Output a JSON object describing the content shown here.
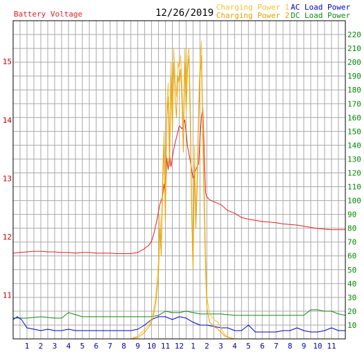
{
  "chart_data": {
    "type": "line",
    "date": "12/26/2019",
    "colors": {
      "voltage": "#e02020",
      "charge1": "#f5c030",
      "charge2": "#e8a000",
      "ac": "#0000cc",
      "dc": "#118811",
      "grid": "#a9a9a9",
      "tick_left": "#cc0000",
      "tick_right": "#008800",
      "tick_x": "#0000aa"
    },
    "legend": {
      "voltage": "Battery Voltage",
      "charge1": "Charging Power 1",
      "charge2": "Charging Power 2",
      "ac": "AC Load Power",
      "dc": "DC Load Power"
    },
    "x_ticks": [
      "1",
      "2",
      "3",
      "4",
      "5",
      "6",
      "7",
      "8",
      "9",
      "10",
      "11",
      "12",
      "1",
      "2",
      "3",
      "4",
      "5",
      "6",
      "7",
      "8",
      "9",
      "10",
      "11"
    ],
    "y_left_ticks": [
      "11",
      "12",
      "13",
      "14",
      "15"
    ],
    "y_right_ticks": [
      "10",
      "20",
      "30",
      "40",
      "50",
      "60",
      "70",
      "80",
      "90",
      "100",
      "110",
      "120",
      "130",
      "140",
      "150",
      "160",
      "170",
      "180",
      "190",
      "200",
      "210",
      "220"
    ],
    "x_range": [
      0,
      24
    ],
    "y_left_range": [
      10.25,
      15.7
    ],
    "y_right_range": [
      0,
      230
    ],
    "series": [
      {
        "name": "Battery Voltage",
        "key": "voltage",
        "axis": "left",
        "x": [
          0,
          0.5,
          1,
          1.5,
          2,
          2.5,
          3,
          3.5,
          4,
          4.5,
          5,
          5.5,
          6,
          6.5,
          7,
          7.5,
          8,
          8.5,
          9,
          9.2,
          9.4,
          9.6,
          9.8,
          10,
          10.2,
          10.4,
          10.6,
          10.8,
          10.9,
          11,
          11.1,
          11.2,
          11.3,
          11.4,
          11.6,
          11.8,
          12,
          12.2,
          12.4,
          12.6,
          12.8,
          13,
          13.2,
          13.4,
          13.5,
          13.6,
          13.7,
          13.8,
          13.9,
          14,
          14.2,
          14.5,
          15,
          15.5,
          16,
          16.5,
          17,
          17.5,
          18,
          18.5,
          19,
          19.5,
          20,
          20.5,
          21,
          21.5,
          22,
          22.5,
          23,
          23.5,
          24
        ],
        "y": [
          11.72,
          11.73,
          11.74,
          11.75,
          11.75,
          11.74,
          11.74,
          11.73,
          11.73,
          11.72,
          11.73,
          11.73,
          11.72,
          11.72,
          11.72,
          11.71,
          11.71,
          11.71,
          11.73,
          11.76,
          11.78,
          11.82,
          11.85,
          11.92,
          12.08,
          12.3,
          12.55,
          12.7,
          12.9,
          12.7,
          13.35,
          13.15,
          13.4,
          13.2,
          13.5,
          13.7,
          13.9,
          13.85,
          14.0,
          13.55,
          13.3,
          13.0,
          13.15,
          13.25,
          13.7,
          14.05,
          14.2,
          13.5,
          12.75,
          12.68,
          12.63,
          12.6,
          12.55,
          12.45,
          12.4,
          12.33,
          12.3,
          12.28,
          12.26,
          12.25,
          12.24,
          12.22,
          12.21,
          12.2,
          12.18,
          12.16,
          12.14,
          12.13,
          12.12,
          12.12,
          12.12
        ]
      },
      {
        "name": "Charging Power 1",
        "key": "charge1",
        "axis": "right",
        "x": [
          0,
          8.5,
          9,
          9.3,
          9.6,
          9.9,
          10.1,
          10.3,
          10.5,
          10.6,
          10.7,
          10.8,
          10.9,
          11,
          11.1,
          11.2,
          11.3,
          11.4,
          11.5,
          11.6,
          11.7,
          11.8,
          11.9,
          12,
          12.1,
          12.2,
          12.3,
          12.4,
          12.5,
          12.6,
          12.7,
          12.8,
          12.9,
          13,
          13.1,
          13.2,
          13.3,
          13.4,
          13.5,
          13.6,
          13.7,
          13.8,
          13.9,
          14,
          14.2,
          14.5,
          14.8,
          15,
          15.3,
          15.6,
          16,
          16.5,
          24
        ],
        "y": [
          0,
          0,
          2,
          5,
          8,
          12,
          18,
          30,
          55,
          90,
          70,
          120,
          150,
          100,
          170,
          185,
          140,
          200,
          165,
          210,
          190,
          175,
          200,
          195,
          205,
          185,
          150,
          210,
          180,
          205,
          210,
          170,
          100,
          60,
          140,
          90,
          120,
          170,
          200,
          215,
          160,
          110,
          60,
          30,
          18,
          14,
          12,
          8,
          3,
          1,
          0,
          0,
          0
        ]
      },
      {
        "name": "Charging Power 2",
        "key": "charge2",
        "axis": "right",
        "x": [
          0,
          8.5,
          9,
          9.3,
          9.6,
          9.9,
          10.1,
          10.3,
          10.5,
          10.6,
          10.7,
          10.8,
          10.9,
          11,
          11.1,
          11.2,
          11.3,
          11.4,
          11.5,
          11.6,
          11.7,
          11.8,
          11.9,
          12,
          12.1,
          12.2,
          12.3,
          12.4,
          12.5,
          12.6,
          12.7,
          12.8,
          12.9,
          13,
          13.1,
          13.2,
          13.3,
          13.4,
          13.5,
          13.6,
          13.7,
          13.8,
          13.9,
          14,
          14.2,
          14.5,
          14.8,
          15,
          15.3,
          15.6,
          16,
          16.5,
          24
        ],
        "y": [
          0,
          0,
          1,
          3,
          6,
          10,
          15,
          25,
          45,
          80,
          60,
          110,
          140,
          85,
          160,
          175,
          125,
          190,
          150,
          200,
          175,
          160,
          190,
          185,
          195,
          170,
          135,
          200,
          165,
          195,
          205,
          155,
          90,
          50,
          125,
          80,
          110,
          160,
          190,
          205,
          145,
          95,
          50,
          22,
          12,
          9,
          7,
          5,
          2,
          1,
          0,
          0,
          0
        ]
      },
      {
        "name": "AC Load Power",
        "key": "ac",
        "axis": "right",
        "x": [
          0,
          0.3,
          0.6,
          1,
          1.5,
          2,
          2.5,
          3,
          3.5,
          4,
          4.5,
          5,
          5.5,
          6,
          6.5,
          7,
          7.5,
          8,
          8.5,
          9,
          9.5,
          10,
          10.5,
          11,
          11.5,
          12,
          12.5,
          13,
          13.5,
          14,
          14.5,
          15,
          15.5,
          16,
          16.5,
          17,
          17.5,
          18,
          18.5,
          19,
          19.5,
          20,
          20.5,
          21,
          21.5,
          22,
          22.5,
          23,
          23.5,
          24
        ],
        "y": [
          14,
          16,
          14,
          8,
          7,
          6,
          7,
          6,
          6,
          7,
          6,
          6,
          6,
          6,
          6,
          6,
          6,
          6,
          6,
          7,
          10,
          14,
          16,
          16,
          14,
          16,
          15,
          12,
          10,
          10,
          9,
          8,
          8,
          6,
          6,
          10,
          5,
          5,
          5,
          5,
          6,
          6,
          8,
          6,
          5,
          5,
          6,
          8,
          6,
          6
        ]
      },
      {
        "name": "DC Load Power",
        "key": "dc",
        "axis": "right",
        "x": [
          0,
          1,
          2,
          3,
          3.5,
          4,
          5,
          6,
          7,
          8,
          9,
          9.5,
          10,
          10.5,
          11,
          11.5,
          12,
          12.5,
          13,
          13.5,
          14,
          15,
          16,
          17,
          18,
          19,
          20,
          21,
          21.5,
          22,
          22.5,
          23,
          23.5,
          24
        ],
        "y": [
          15,
          15,
          16,
          15,
          15,
          19,
          16,
          16,
          16,
          16,
          16,
          16,
          16,
          17,
          20,
          19,
          19,
          20,
          19,
          18,
          18,
          18,
          17,
          17,
          17,
          17,
          17,
          17,
          21,
          21,
          20,
          20,
          18,
          17
        ]
      }
    ]
  }
}
